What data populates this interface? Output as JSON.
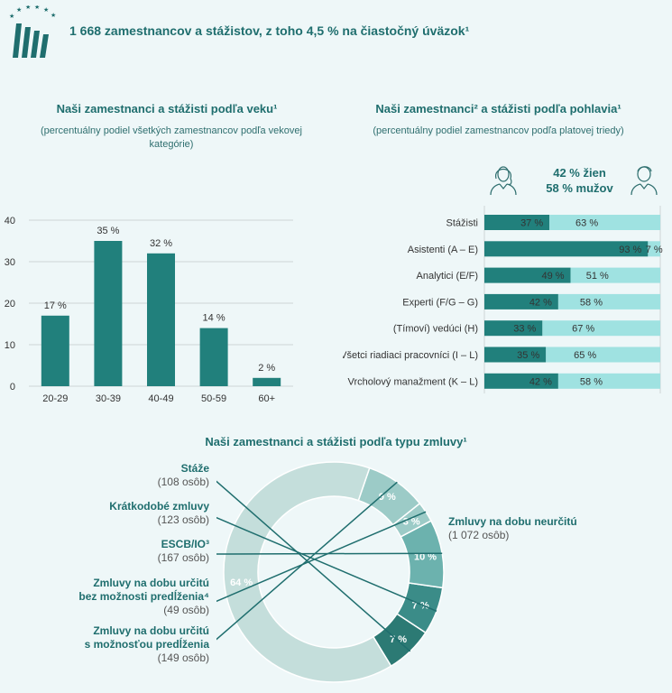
{
  "header": {
    "title": "1 668 zamestnancov a stážistov, z toho 4,5 % na čiastočný úväzok¹"
  },
  "colors": {
    "dark_teal": "#21807c",
    "light_teal": "#9fe2e1",
    "title_teal": "#1f6e6e",
    "donut_dark": "#2c7a74",
    "donut_mid": "#3b8c88",
    "donut_light1": "#6cb2ae",
    "donut_light2": "#9ccbc7",
    "donut_big": "#c4dedb"
  },
  "age_chart_header": {
    "title": "Naši zamestnanci a stážisti podľa veku¹",
    "subtitle": "(percentuálny podiel všetkých zamestnancov podľa vekovej kategórie)"
  },
  "gender_chart_header": {
    "title": "Naši zamestnanci² a stážisti podľa pohlavia¹",
    "subtitle": "(percentuálny podiel zamestnancov podľa platovej triedy)",
    "women_total": "42 % žien",
    "men_total": "58 % mužov"
  },
  "contract_chart_header": {
    "title": "Naši zamestnanci a stážisti podľa typu zmluvy¹"
  },
  "chart_data": [
    {
      "type": "bar",
      "title": "Naši zamestnanci a stážisti podľa veku¹",
      "subtitle": "(percentuálny podiel všetkých zamestnancov podľa vekovej kategórie)",
      "categories": [
        "20-29",
        "30-39",
        "40-49",
        "50-59",
        "60+"
      ],
      "values": [
        17,
        35,
        32,
        14,
        2
      ],
      "data_labels": [
        "17 %",
        "35 %",
        "32 %",
        "14 %",
        "2 %"
      ],
      "yticks": [
        "0",
        "10",
        "20",
        "30",
        "40"
      ],
      "ylim": [
        0,
        40
      ],
      "grid": true
    },
    {
      "type": "bar",
      "orientation": "horizontal",
      "stacked": true,
      "title": "Naši zamestnanci² a stážisti podľa pohlavia¹",
      "subtitle": "(percentuálny podiel zamestnancov podľa platovej triedy)",
      "categories": [
        "Stážisti",
        "Asistenti (A – E)",
        "Analytici (E/F)",
        "Experti (F/G – G)",
        "(Tímoví) vedúci (H)",
        "Všetci riadiaci pracovníci (I – L)",
        "Vrcholový manažment (K – L)"
      ],
      "series": [
        {
          "values": [
            37,
            93,
            49,
            42,
            33,
            35,
            42
          ],
          "labels": [
            "37 %",
            "93 %",
            "49 %",
            "42 %",
            "33 %",
            "35 %",
            "42 %"
          ]
        },
        {
          "values": [
            63,
            7,
            51,
            58,
            67,
            65,
            58
          ],
          "labels": [
            "63 %",
            "7 %",
            "51 %",
            "58 %",
            "67 %",
            "65 %",
            "58 %"
          ]
        }
      ],
      "xlim": [
        0,
        100
      ]
    },
    {
      "type": "pie",
      "donut": true,
      "title": "Naši zamestnanci a stážisti podľa typu zmluvy¹",
      "slices": [
        {
          "name": "Stáže",
          "count": "(108 osôb)",
          "value": 7,
          "label": "7 %"
        },
        {
          "name": "Krátkodobé zmluvy",
          "count": "(123 osôb)",
          "value": 7,
          "label": "7 %"
        },
        {
          "name": "ESCB/IO³",
          "count": "(167 osôb)",
          "value": 10,
          "label": "10 %"
        },
        {
          "name": "Zmluvy na dobu určitú bez možnosti predĺženia⁴",
          "name_line1": "Zmluvy na dobu určitú",
          "name_line2": "bez možnosti predĺženia⁴",
          "count": "(49 osôb)",
          "value": 3,
          "label": "3 %"
        },
        {
          "name": "Zmluvy na dobu určitú s možnosťou predĺženia",
          "name_line1": "Zmluvy na dobu určitú",
          "name_line2": "s možnosťou predĺženia",
          "count": "(149 osôb)",
          "value": 9,
          "label": "9 %"
        },
        {
          "name": "Zmluvy na dobu neurčitú",
          "count": "(1 072 osôb)",
          "value": 64,
          "label": "64 %"
        }
      ]
    }
  ]
}
